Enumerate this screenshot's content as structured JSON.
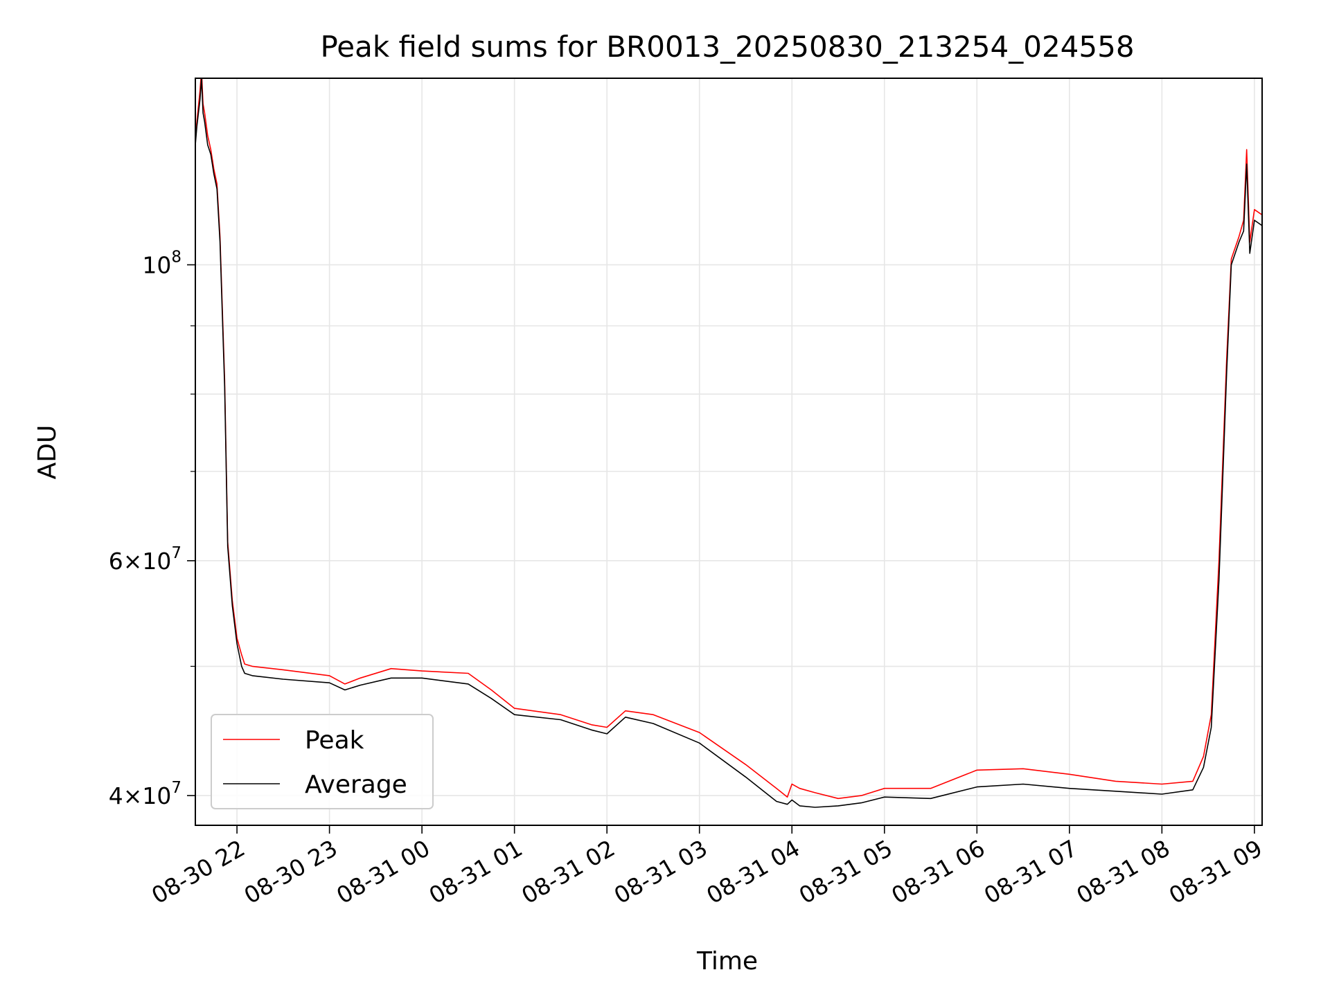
{
  "chart_data": {
    "type": "line",
    "title": "Peak field sums for BR0013_20250830_213254_024558",
    "xlabel": "Time",
    "ylabel": "ADU",
    "yscale": "log",
    "xlim": [
      "2025-08-30 21:33",
      "2025-08-31 09:05"
    ],
    "ylim": [
      38000000,
      138000000
    ],
    "grid": true,
    "legend_position": "lower-left",
    "x_ticks": [
      {
        "t": "2025-08-30 22:00",
        "label": "08-30 22"
      },
      {
        "t": "2025-08-30 23:00",
        "label": "08-30 23"
      },
      {
        "t": "2025-08-31 00:00",
        "label": "08-31 00"
      },
      {
        "t": "2025-08-31 01:00",
        "label": "08-31 01"
      },
      {
        "t": "2025-08-31 02:00",
        "label": "08-31 02"
      },
      {
        "t": "2025-08-31 03:00",
        "label": "08-31 03"
      },
      {
        "t": "2025-08-31 04:00",
        "label": "08-31 04"
      },
      {
        "t": "2025-08-31 05:00",
        "label": "08-31 05"
      },
      {
        "t": "2025-08-31 06:00",
        "label": "08-31 06"
      },
      {
        "t": "2025-08-31 07:00",
        "label": "08-31 07"
      },
      {
        "t": "2025-08-31 08:00",
        "label": "08-31 08"
      },
      {
        "t": "2025-08-31 09:00",
        "label": "08-31 09"
      }
    ],
    "y_major_ticks": [
      {
        "value": 40000000,
        "base": "4",
        "exp": "7"
      },
      {
        "value": 60000000,
        "base": "6",
        "exp": "7"
      },
      {
        "value": 100000000,
        "base": "",
        "exp": "8"
      }
    ],
    "y_minor_ticks": [
      50000000,
      70000000,
      80000000,
      90000000
    ],
    "series": [
      {
        "name": "Peak",
        "color": "#ff0000",
        "t": [
          "2025-08-30 21:33",
          "2025-08-30 21:34",
          "2025-08-30 21:36",
          "2025-08-30 21:37",
          "2025-08-30 21:38",
          "2025-08-30 21:39",
          "2025-08-30 21:41",
          "2025-08-30 21:43",
          "2025-08-30 21:44",
          "2025-08-30 21:45",
          "2025-08-30 21:47",
          "2025-08-30 21:49",
          "2025-08-30 21:52",
          "2025-08-30 21:54",
          "2025-08-30 21:57",
          "2025-08-30 22:00",
          "2025-08-30 22:03",
          "2025-08-30 22:05",
          "2025-08-30 22:10",
          "2025-08-30 22:30",
          "2025-08-30 23:00",
          "2025-08-30 23:10",
          "2025-08-30 23:20",
          "2025-08-30 23:40",
          "2025-08-31 00:00",
          "2025-08-31 00:30",
          "2025-08-31 00:45",
          "2025-08-31 01:00",
          "2025-08-31 01:30",
          "2025-08-31 01:50",
          "2025-08-31 02:00",
          "2025-08-31 02:12",
          "2025-08-31 02:30",
          "2025-08-31 03:00",
          "2025-08-31 03:30",
          "2025-08-31 03:50",
          "2025-08-31 03:57",
          "2025-08-31 04:00",
          "2025-08-31 04:05",
          "2025-08-31 04:15",
          "2025-08-31 04:30",
          "2025-08-31 04:45",
          "2025-08-31 05:00",
          "2025-08-31 05:30",
          "2025-08-31 06:00",
          "2025-08-31 06:30",
          "2025-08-31 07:00",
          "2025-08-31 07:30",
          "2025-08-31 08:00",
          "2025-08-31 08:20",
          "2025-08-31 08:27",
          "2025-08-31 08:32",
          "2025-08-31 08:37",
          "2025-08-31 08:42",
          "2025-08-31 08:45",
          "2025-08-31 08:50",
          "2025-08-31 08:53",
          "2025-08-31 08:55",
          "2025-08-31 08:57",
          "2025-08-31 09:00",
          "2025-08-31 09:05"
        ],
        "values": [
          125000000,
          128000000,
          135000000,
          140000000,
          132000000,
          130000000,
          125000000,
          122000000,
          120000000,
          118000000,
          115000000,
          105000000,
          82000000,
          62000000,
          56000000,
          52500000,
          51000000,
          50200000,
          50000000,
          49700000,
          49200000,
          48500000,
          49000000,
          49800000,
          49600000,
          49400000,
          48000000,
          46500000,
          46000000,
          45200000,
          45000000,
          46300000,
          46000000,
          44600000,
          42200000,
          40500000,
          39900000,
          40800000,
          40500000,
          40200000,
          39800000,
          40000000,
          40500000,
          40500000,
          41800000,
          41900000,
          41500000,
          41000000,
          40800000,
          41000000,
          42800000,
          46000000,
          60000000,
          85000000,
          101000000,
          105000000,
          108000000,
          122000000,
          104000000,
          110000000,
          109000000
        ]
      },
      {
        "name": "Average",
        "color": "#000000",
        "t": [
          "2025-08-30 21:33",
          "2025-08-30 21:34",
          "2025-08-30 21:36",
          "2025-08-30 21:37",
          "2025-08-30 21:38",
          "2025-08-30 21:39",
          "2025-08-30 21:41",
          "2025-08-30 21:43",
          "2025-08-30 21:44",
          "2025-08-30 21:45",
          "2025-08-30 21:47",
          "2025-08-30 21:49",
          "2025-08-30 21:52",
          "2025-08-30 21:54",
          "2025-08-30 21:57",
          "2025-08-30 22:00",
          "2025-08-30 22:03",
          "2025-08-30 22:05",
          "2025-08-30 22:10",
          "2025-08-30 22:30",
          "2025-08-30 23:00",
          "2025-08-30 23:10",
          "2025-08-30 23:20",
          "2025-08-30 23:40",
          "2025-08-31 00:00",
          "2025-08-31 00:30",
          "2025-08-31 00:45",
          "2025-08-31 01:00",
          "2025-08-31 01:30",
          "2025-08-31 01:50",
          "2025-08-31 02:00",
          "2025-08-31 02:12",
          "2025-08-31 02:30",
          "2025-08-31 03:00",
          "2025-08-31 03:30",
          "2025-08-31 03:50",
          "2025-08-31 03:57",
          "2025-08-31 04:00",
          "2025-08-31 04:05",
          "2025-08-31 04:15",
          "2025-08-31 04:30",
          "2025-08-31 04:45",
          "2025-08-31 05:00",
          "2025-08-31 05:30",
          "2025-08-31 06:00",
          "2025-08-31 06:30",
          "2025-08-31 07:00",
          "2025-08-31 07:30",
          "2025-08-31 08:00",
          "2025-08-31 08:20",
          "2025-08-31 08:27",
          "2025-08-31 08:32",
          "2025-08-31 08:37",
          "2025-08-31 08:42",
          "2025-08-31 08:45",
          "2025-08-31 08:50",
          "2025-08-31 08:53",
          "2025-08-31 08:55",
          "2025-08-31 08:57",
          "2025-08-31 09:00",
          "2025-08-31 09:05"
        ],
        "values": [
          123000000,
          127000000,
          133000000,
          138000000,
          130000000,
          128000000,
          123000000,
          121000000,
          119000000,
          117000000,
          114000000,
          104000000,
          81000000,
          61500000,
          55500000,
          52000000,
          50000000,
          49400000,
          49200000,
          48900000,
          48600000,
          48000000,
          48400000,
          49000000,
          49000000,
          48500000,
          47300000,
          46000000,
          45600000,
          44800000,
          44500000,
          45800000,
          45300000,
          43800000,
          41300000,
          39600000,
          39400000,
          39700000,
          39300000,
          39200000,
          39300000,
          39500000,
          39900000,
          39800000,
          40600000,
          40800000,
          40500000,
          40300000,
          40100000,
          40400000,
          42000000,
          45000000,
          58000000,
          83000000,
          100000000,
          104000000,
          106000000,
          119000000,
          102000000,
          108000000,
          107000000
        ]
      }
    ]
  }
}
